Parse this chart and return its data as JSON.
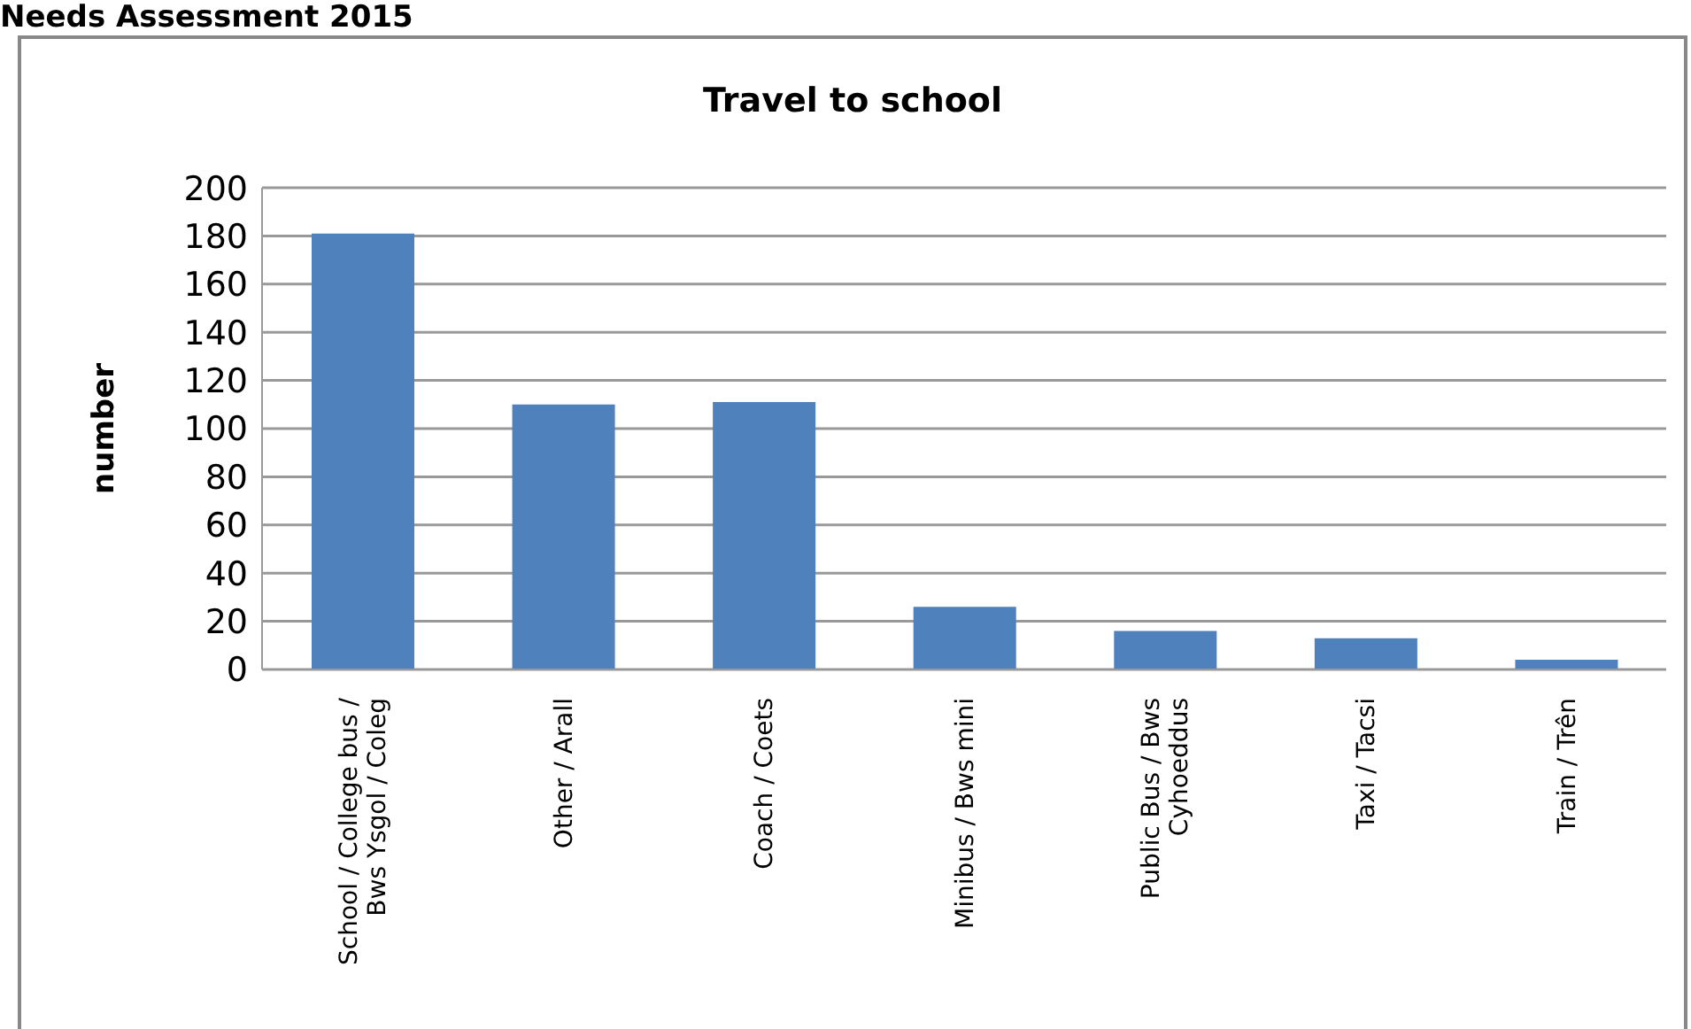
{
  "chart_data": {
    "type": "bar",
    "title": "Travel to school",
    "ylabel": "number",
    "annotations": [
      "Needs Assessment 2015"
    ],
    "categories": [
      "School / College bus / Bws Ysgol / Coleg",
      "Other / Arall",
      "Coach / Coets",
      "Minibus / Bws mini",
      "Public Bus / Bws Cyhoeddus",
      "Taxi / Tacsi",
      "Train / Trên"
    ],
    "values": [
      181,
      110,
      111,
      26,
      16,
      13,
      4
    ],
    "color": "#4f81bd",
    "ylim": [
      0,
      200
    ],
    "yticks": [
      0,
      20,
      40,
      60,
      80,
      100,
      120,
      140,
      160,
      180,
      200
    ],
    "grid": "y",
    "legend": false
  }
}
